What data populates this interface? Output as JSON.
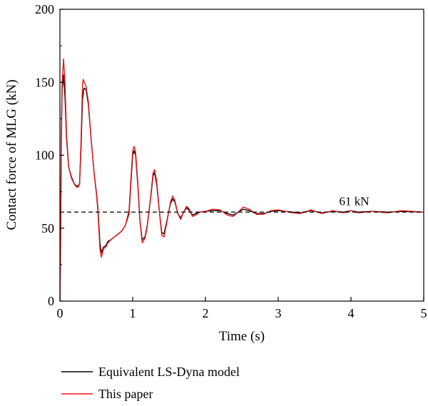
{
  "chart_data": {
    "type": "line",
    "title": "",
    "xlabel": "Time (s)",
    "ylabel": "Contact force of MLG (kN)",
    "xlim": [
      0,
      5
    ],
    "ylim": [
      0,
      200
    ],
    "xticks": [
      0,
      1,
      2,
      3,
      4,
      5
    ],
    "yticks": [
      0,
      50,
      100,
      150,
      200
    ],
    "grid": false,
    "legend_position": "bottom-left",
    "reference_line": {
      "y": 61,
      "style": "dashed",
      "label": "61 kN"
    },
    "series": [
      {
        "name": "Equivalent LS-Dyna model",
        "color": "#000000",
        "points": [
          [
            0,
            0
          ],
          [
            0.01,
            40
          ],
          [
            0.02,
            110
          ],
          [
            0.03,
            145
          ],
          [
            0.05,
            155
          ],
          [
            0.07,
            140
          ],
          [
            0.09,
            112
          ],
          [
            0.12,
            92
          ],
          [
            0.16,
            85
          ],
          [
            0.2,
            80
          ],
          [
            0.23,
            79
          ],
          [
            0.25,
            79
          ],
          [
            0.27,
            80
          ],
          [
            0.29,
            105
          ],
          [
            0.31,
            138
          ],
          [
            0.33,
            146
          ],
          [
            0.36,
            145
          ],
          [
            0.39,
            135
          ],
          [
            0.43,
            110
          ],
          [
            0.47,
            88
          ],
          [
            0.5,
            75
          ],
          [
            0.52,
            65
          ],
          [
            0.55,
            40
          ],
          [
            0.57,
            33
          ],
          [
            0.6,
            37
          ],
          [
            0.63,
            38
          ],
          [
            0.66,
            41
          ],
          [
            0.7,
            42
          ],
          [
            0.75,
            44
          ],
          [
            0.8,
            46
          ],
          [
            0.85,
            48
          ],
          [
            0.9,
            52
          ],
          [
            0.95,
            60
          ],
          [
            0.98,
            85
          ],
          [
            1.0,
            100
          ],
          [
            1.02,
            103
          ],
          [
            1.04,
            100
          ],
          [
            1.07,
            80
          ],
          [
            1.1,
            55
          ],
          [
            1.13,
            42
          ],
          [
            1.17,
            44
          ],
          [
            1.2,
            52
          ],
          [
            1.25,
            72
          ],
          [
            1.28,
            86
          ],
          [
            1.3,
            88
          ],
          [
            1.33,
            80
          ],
          [
            1.37,
            60
          ],
          [
            1.4,
            47
          ],
          [
            1.43,
            46
          ],
          [
            1.47,
            55
          ],
          [
            1.52,
            67
          ],
          [
            1.55,
            70
          ],
          [
            1.58,
            68
          ],
          [
            1.62,
            60
          ],
          [
            1.66,
            57
          ],
          [
            1.7,
            61
          ],
          [
            1.74,
            64
          ],
          [
            1.78,
            62
          ],
          [
            1.82,
            59
          ],
          [
            1.87,
            60
          ],
          [
            1.92,
            61
          ],
          [
            2.0,
            61.5
          ],
          [
            2.1,
            62
          ],
          [
            2.2,
            62
          ],
          [
            2.3,
            60
          ],
          [
            2.38,
            59
          ],
          [
            2.45,
            61
          ],
          [
            2.52,
            63
          ],
          [
            2.6,
            62
          ],
          [
            2.7,
            60
          ],
          [
            2.8,
            60
          ],
          [
            2.9,
            61.5
          ],
          [
            3.0,
            62
          ],
          [
            3.1,
            61.5
          ],
          [
            3.2,
            61
          ],
          [
            3.3,
            60.5
          ],
          [
            3.45,
            62
          ],
          [
            3.6,
            60.5
          ],
          [
            3.75,
            61.5
          ],
          [
            3.9,
            61
          ],
          [
            4.0,
            62
          ],
          [
            4.1,
            61
          ],
          [
            4.3,
            61.5
          ],
          [
            4.5,
            61
          ],
          [
            4.7,
            61.5
          ],
          [
            5.0,
            61
          ]
        ]
      },
      {
        "name": "This paper",
        "color": "#e8161b",
        "points": [
          [
            0,
            0
          ],
          [
            0.01,
            45
          ],
          [
            0.02,
            118
          ],
          [
            0.03,
            150
          ],
          [
            0.05,
            166
          ],
          [
            0.07,
            150
          ],
          [
            0.09,
            115
          ],
          [
            0.12,
            92
          ],
          [
            0.16,
            84
          ],
          [
            0.2,
            80
          ],
          [
            0.23,
            78
          ],
          [
            0.25,
            78
          ],
          [
            0.27,
            80
          ],
          [
            0.29,
            110
          ],
          [
            0.31,
            148
          ],
          [
            0.32,
            152
          ],
          [
            0.36,
            147
          ],
          [
            0.39,
            137
          ],
          [
            0.43,
            110
          ],
          [
            0.47,
            88
          ],
          [
            0.5,
            74
          ],
          [
            0.52,
            63
          ],
          [
            0.55,
            36
          ],
          [
            0.57,
            30
          ],
          [
            0.6,
            36
          ],
          [
            0.63,
            37
          ],
          [
            0.66,
            40
          ],
          [
            0.7,
            42
          ],
          [
            0.75,
            44
          ],
          [
            0.8,
            46
          ],
          [
            0.85,
            48
          ],
          [
            0.9,
            52
          ],
          [
            0.95,
            62
          ],
          [
            0.98,
            88
          ],
          [
            1.0,
            103
          ],
          [
            1.02,
            106
          ],
          [
            1.04,
            102
          ],
          [
            1.07,
            82
          ],
          [
            1.1,
            55
          ],
          [
            1.13,
            40
          ],
          [
            1.17,
            43
          ],
          [
            1.2,
            51
          ],
          [
            1.25,
            73
          ],
          [
            1.28,
            88
          ],
          [
            1.3,
            90
          ],
          [
            1.33,
            82
          ],
          [
            1.37,
            60
          ],
          [
            1.4,
            45
          ],
          [
            1.43,
            44
          ],
          [
            1.47,
            54
          ],
          [
            1.52,
            68
          ],
          [
            1.55,
            72
          ],
          [
            1.58,
            69
          ],
          [
            1.62,
            60
          ],
          [
            1.66,
            56
          ],
          [
            1.7,
            61
          ],
          [
            1.74,
            65
          ],
          [
            1.78,
            63
          ],
          [
            1.82,
            58
          ],
          [
            1.87,
            59
          ],
          [
            1.92,
            61
          ],
          [
            2.0,
            61.5
          ],
          [
            2.1,
            63
          ],
          [
            2.2,
            62.5
          ],
          [
            2.3,
            59
          ],
          [
            2.38,
            58
          ],
          [
            2.45,
            61
          ],
          [
            2.52,
            64.5
          ],
          [
            2.6,
            63
          ],
          [
            2.7,
            59.5
          ],
          [
            2.8,
            59.5
          ],
          [
            2.9,
            62
          ],
          [
            3.0,
            62.5
          ],
          [
            3.1,
            61.5
          ],
          [
            3.2,
            60.5
          ],
          [
            3.3,
            60
          ],
          [
            3.45,
            62.5
          ],
          [
            3.6,
            60
          ],
          [
            3.75,
            62
          ],
          [
            3.9,
            60.5
          ],
          [
            4.0,
            62
          ],
          [
            4.1,
            60.5
          ],
          [
            4.3,
            61.5
          ],
          [
            4.5,
            60.5
          ],
          [
            4.7,
            62
          ],
          [
            5.0,
            61
          ]
        ]
      }
    ]
  }
}
